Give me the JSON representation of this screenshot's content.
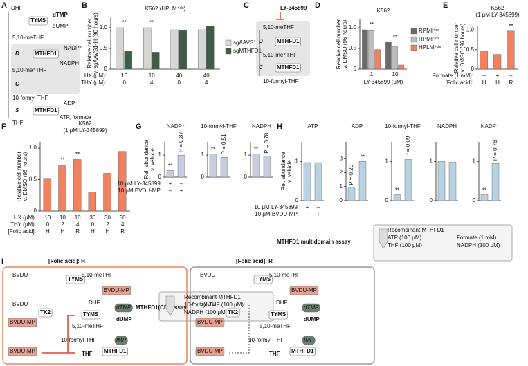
{
  "panel_labels": [
    "A",
    "B",
    "C",
    "D",
    "E",
    "F",
    "G",
    "H",
    "I"
  ],
  "chart_data": [
    {
      "type": "bar",
      "title": "K562 (HPLM⁺ᵈˢ)",
      "y_label": [
        "Relative cell number",
        "v. sgAAVS1-H (96 hours)"
      ],
      "series": [
        {
          "name": "sgAAVS1",
          "color": "#d6d6d6",
          "values": [
            1.0,
            1.0,
            0.95,
            0.95
          ]
        },
        {
          "name": "sgMTHFD1",
          "color": "#3e5c48",
          "values": [
            0.43,
            0.41,
            0.93,
            1.04
          ]
        }
      ],
      "ylim": [
        0,
        1.25
      ],
      "yticks": [
        0,
        0.5,
        {
          "value": 1,
          "label": "1.0"
        }
      ],
      "significance": [
        "**",
        "**",
        null,
        null
      ],
      "conditions": [
        {
          "label": "HX (μM):",
          "values": [
            10,
            10,
            40,
            40
          ]
        },
        {
          "label": "THY (μM):",
          "values": [
            0,
            4,
            0,
            4
          ]
        }
      ],
      "legend": "right"
    },
    {
      "type": "bar",
      "title": "K562",
      "y_label": [
        "Relative cell number",
        "v. DMSO (96 hours)"
      ],
      "x_label": "LY-345899 (μM)",
      "categories": [
        1,
        10
      ],
      "series": [
        {
          "name": "RPMI⁺ᵈˢ",
          "color": "#6b6b6b",
          "values": [
            0.95,
            0.65
          ]
        },
        {
          "name": "RPMI⁻ᵈˢ",
          "color": "#bdbdbd",
          "values": [
            0.93,
            0.55
          ]
        },
        {
          "name": "HPLM⁺ᵈˢ",
          "color": "#f08262",
          "values": [
            0.47,
            0.1
          ]
        }
      ],
      "ylim": [
        0,
        1.2
      ],
      "yticks": [
        0,
        0.5,
        {
          "value": 1,
          "label": "1.0"
        }
      ],
      "significance": [
        "**",
        "**"
      ],
      "legend": "right"
    },
    {
      "type": "bar",
      "title": [
        "K562",
        "(1 μM LY-345899)"
      ],
      "y_label": [
        "Relative cell number",
        "v. DMSO (96 hours)"
      ],
      "series": [
        {
          "color": "#f08262",
          "values": [
            0.47,
            0.38,
            0.98
          ]
        }
      ],
      "ylim": [
        0,
        1.1
      ],
      "yticks": [
        0,
        0.5,
        {
          "value": 1,
          "label": "1.0"
        }
      ],
      "significance": [
        null,
        null,
        "**"
      ],
      "conditions": [
        {
          "label": "Formate (1 mM):",
          "values": [
            "–",
            "+",
            "–"
          ]
        },
        {
          "label": "[Folic acid]:",
          "values": [
            "H",
            "H",
            "R"
          ]
        }
      ]
    },
    {
      "type": "bar",
      "title": [
        "K562",
        "(1 μM LY-345899)"
      ],
      "y_label": [
        "Relative cell number",
        "v. DMSO (96 hours)"
      ],
      "series": [
        {
          "color": "#f08262",
          "values": [
            0.52,
            0.73,
            0.82,
            0.3,
            0.6,
            0.95
          ]
        }
      ],
      "ylim": [
        0,
        1.1
      ],
      "yticks": [
        0,
        0.5,
        {
          "value": 1,
          "label": "1.0"
        }
      ],
      "significance": [
        null,
        "**",
        "**",
        null,
        null,
        null
      ],
      "conditions": [
        {
          "label": "HX (μM):",
          "values": [
            10,
            10,
            10,
            30,
            30,
            30
          ]
        },
        {
          "label": "THY (μM):",
          "values": [
            0,
            2,
            4,
            0,
            2,
            4
          ]
        },
        {
          "label": "[Folic acid]:",
          "values": [
            "H",
            "H",
            "R",
            "H",
            "H",
            "R"
          ]
        }
      ]
    },
    {
      "type": "bar-panel",
      "y_label": [
        "Rel. abundance",
        "v. vehicle"
      ],
      "color": "#c9cce0",
      "conditions": [
        {
          "label": "10 μM LY-345899:",
          "values": [
            "+",
            "–"
          ]
        },
        {
          "label": "10 μM BVDU-MP:",
          "values": [
            "–",
            "+"
          ]
        }
      ],
      "subplots": [
        {
          "title": "NADP⁺",
          "values": [
            0.3,
            1.0
          ],
          "annotations": [
            "**",
            "P = 0.87"
          ],
          "ylim": [
            0,
            1.6
          ],
          "yticks": [
            0,
            1
          ]
        },
        {
          "title": "10-formyl-THF",
          "values": [
            1.05,
            0.9
          ],
          "annotations": [
            "**",
            "P = 0.51"
          ],
          "ylim": [
            0,
            1.6
          ],
          "yticks": [
            0,
            1
          ]
        },
        {
          "title": "NADPH",
          "values": [
            1.05,
            0.95
          ],
          "annotations": [
            "**",
            "P = 0.78"
          ],
          "ylim": [
            0,
            1.6
          ],
          "yticks": [
            0,
            1
          ]
        }
      ]
    },
    {
      "type": "bar-panel",
      "y_label": [
        "Rel. abundance",
        "v. vehicle"
      ],
      "color": "#b9d2e3",
      "conditions": [
        {
          "label": "10 μM LY-345899:",
          "values": [
            "+",
            "–"
          ]
        },
        {
          "label": "10 μM BVDU-MP:",
          "values": [
            "–",
            "+"
          ]
        }
      ],
      "subplots": [
        {
          "title": "ATP",
          "values": [
            0.97,
            0.97
          ],
          "annotations": [
            null,
            null
          ],
          "ylim": [
            0,
            1.5
          ],
          "yticks": [
            0,
            1
          ]
        },
        {
          "title": "ADP",
          "values": [
            0.9,
            2.8
          ],
          "annotations": [
            "P = 0.20",
            "**"
          ],
          "ylim": [
            0,
            4.2
          ],
          "yticks": [
            0,
            1,
            2,
            3
          ]
        },
        {
          "title": "10-formyl-THF",
          "values": [
            0.15,
            1.05
          ],
          "annotations": [
            "**",
            "P = 0.09"
          ],
          "ylim": [
            0,
            1.5
          ],
          "yticks": [
            0,
            1
          ]
        },
        {
          "title": "NADPH",
          "values": [
            1.0,
            0.98
          ],
          "annotations": [
            null,
            null
          ],
          "ylim": [
            0,
            1.5
          ],
          "yticks": [
            0,
            1
          ]
        },
        {
          "title": "NADP⁺",
          "values": [
            0.15,
            0.95
          ],
          "annotations": [
            "**",
            "P = 0.78"
          ],
          "ylim": [
            0,
            1.5
          ],
          "yticks": [
            0,
            1
          ]
        }
      ]
    }
  ],
  "assays": {
    "G": {
      "title": "MTHFD1(CD) assay",
      "lines": [
        "Recombinant MTHFD1",
        "10-formyl-THF (100 μM)",
        "NADPH (100 μM)"
      ]
    },
    "H": {
      "title": "MTHFD1 multidomain assay",
      "lines": [
        "Recombinant MTHFD1",
        "Formate (1 mM)",
        "ATP (100 μM)",
        "THF (100 μM)",
        "NADPH (100 μM)"
      ]
    }
  },
  "diagrams": {
    "A": [
      "DHF",
      "TYMS",
      "dTMP",
      "dUMP",
      "5,10-meTHF",
      "D",
      "MTHFD1",
      "NADP⁺",
      "NADPH",
      "5,10-me⁺THF",
      "C",
      "10-formyl-THF",
      "S",
      "MTHFD1",
      "ADP",
      "ATP, formate",
      "THF"
    ],
    "C": [
      "LY-345899",
      "5,10-meTHF",
      "D",
      "MTHFD1",
      "5,10-me⁺THF",
      "C",
      "MTHFD1",
      "10-formyl-THF"
    ],
    "I": {
      "left": [
        "[Folic acid]: H",
        "BVDU",
        "BVDU",
        "TK2",
        "BVDU-MP",
        "BVDU-MP",
        "TYMS",
        "5,10-meTHF",
        "BVDU-MP",
        "DHF",
        "TYMS",
        "dTMP",
        "dUMP",
        "5,10-meTHF",
        "10-formyl-THF",
        "IMP",
        "MTHFD1",
        "THF"
      ],
      "right": [
        "[Folic acid]: R",
        "BVDU",
        "BVDU",
        "TK2",
        "BVDU-MP",
        "BVDU-MP",
        "TYMS",
        "5,10-meTHF",
        "BVDU-MP",
        "DHF",
        "TYMS",
        "dTMP",
        "dUMP",
        "5,10-meTHF",
        "10-formyl-THF",
        "IMP",
        "MTHFD1",
        "THF"
      ]
    }
  }
}
